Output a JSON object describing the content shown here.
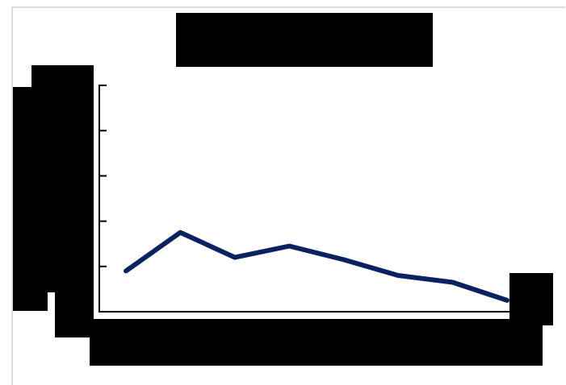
{
  "colors": {
    "series_line": "#0b2260",
    "axis": "#000000",
    "redaction": "#000000",
    "frame_border": "#dcdcdc"
  },
  "chart_data": {
    "type": "line",
    "title": "",
    "xlabel": "",
    "ylabel": "",
    "ylim": [
      0,
      5
    ],
    "y_ticks": [
      0,
      1,
      2,
      3,
      4,
      5
    ],
    "grid": false,
    "series": [
      {
        "values": [
          0.9,
          1.75,
          1.2,
          1.45,
          1.15,
          0.8,
          0.65,
          0.25
        ]
      }
    ]
  }
}
